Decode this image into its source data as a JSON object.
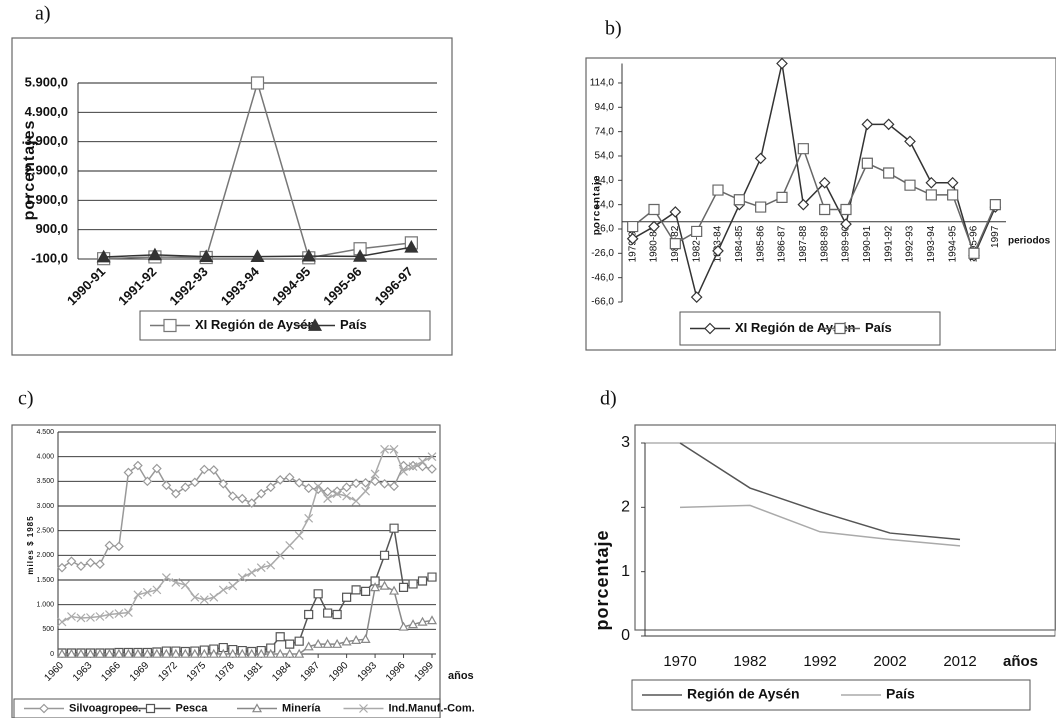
{
  "chart_data": [
    {
      "type": "line",
      "title": "a)",
      "y_label": "porcentajes",
      "categories": [
        "1990-91",
        "1991-92",
        "1992-93",
        "1993-94",
        "1994-95",
        "1995-96",
        "1996-97"
      ],
      "series": [
        {
          "name": "XI Región de Aysén",
          "color": "#777777",
          "marker": "square",
          "values": [
            -90,
            -30,
            -50,
            5900,
            -60,
            250,
            450
          ]
        },
        {
          "name": "País",
          "color": "#333333",
          "marker": "triangle",
          "values": [
            -30,
            40,
            -20,
            -20,
            0,
            -10,
            300
          ]
        }
      ],
      "ylim": [
        -100,
        5900
      ],
      "yticks": [
        {
          "value": -100,
          "label": "-100,0"
        },
        {
          "value": 900,
          "label": "900,0"
        },
        {
          "value": 1900,
          "label": "1.900,0"
        },
        {
          "value": 2900,
          "label": "2.900,0"
        },
        {
          "value": 3900,
          "label": "3.900,0"
        },
        {
          "value": 4900,
          "label": "4.900,0"
        },
        {
          "value": 5900,
          "label": "5.900,0"
        }
      ],
      "grid": true,
      "legend": "bottom"
    },
    {
      "type": "line",
      "title": "b)",
      "y_label": "porcentaje",
      "x_label": "periodos",
      "categories": [
        "1979-80",
        "1980-81",
        "1981-82",
        "1982-83",
        "1983-84",
        "1984-85",
        "1985-86",
        "1986-87",
        "1987-88",
        "1988-89",
        "1989-90",
        "1990-91",
        "1991-92",
        "1992-93",
        "1993-94",
        "1994-95",
        "1995-96",
        "1997"
      ],
      "series": [
        {
          "name": "XI Región de Aysén",
          "color": "#333333",
          "marker": "diamond",
          "values": [
            -14,
            -4,
            8,
            -62,
            -24,
            14,
            52,
            130,
            14,
            32,
            -2,
            80,
            80,
            66,
            32,
            32,
            -28,
            12
          ]
        },
        {
          "name": "País",
          "color": "#666666",
          "marker": "square",
          "values": [
            -4,
            10,
            -18,
            -8,
            26,
            18,
            12,
            20,
            60,
            10,
            10,
            48,
            40,
            30,
            22,
            22,
            -26,
            14
          ]
        }
      ],
      "ylim": [
        -66,
        130
      ],
      "yticks": [
        {
          "value": -66,
          "label": "-66,0"
        },
        {
          "value": -46,
          "label": "-46,0"
        },
        {
          "value": -26,
          "label": "-26,0"
        },
        {
          "value": -6,
          "label": "-6,0"
        },
        {
          "value": 14,
          "label": "14,0"
        },
        {
          "value": 34,
          "label": "34,0"
        },
        {
          "value": 54,
          "label": "54,0"
        },
        {
          "value": 74,
          "label": "74,0"
        },
        {
          "value": 94,
          "label": "94,0"
        },
        {
          "value": 114,
          "label": "114,0"
        }
      ],
      "grid": false,
      "legend": "bottom"
    },
    {
      "type": "line",
      "title": "c)",
      "y_label": "miles $ 1985",
      "x_label": "años",
      "x": [
        1960,
        1961,
        1962,
        1963,
        1964,
        1965,
        1966,
        1967,
        1968,
        1969,
        1970,
        1971,
        1972,
        1973,
        1974,
        1975,
        1976,
        1977,
        1978,
        1979,
        1980,
        1981,
        1982,
        1983,
        1984,
        1985,
        1986,
        1987,
        1988,
        1989,
        1990,
        1991,
        1992,
        1993,
        1994,
        1995,
        1996,
        1997,
        1998,
        1999
      ],
      "series": [
        {
          "name": "Silvoagropec.",
          "color": "#999999",
          "marker": "diamond",
          "values": [
            1750,
            1880,
            1780,
            1850,
            1820,
            2200,
            2180,
            3680,
            3820,
            3500,
            3760,
            3420,
            3250,
            3380,
            3480,
            3740,
            3730,
            3450,
            3200,
            3150,
            3060,
            3250,
            3380,
            3530,
            3580,
            3470,
            3360,
            3340,
            3290,
            3300,
            3380,
            3460,
            3470,
            3500,
            3450,
            3400,
            3820,
            3820,
            3800,
            3750
          ]
        },
        {
          "name": "Pesca",
          "color": "#555555",
          "marker": "square",
          "values": [
            20,
            20,
            20,
            20,
            20,
            20,
            30,
            30,
            30,
            30,
            40,
            60,
            60,
            50,
            60,
            80,
            100,
            130,
            90,
            70,
            50,
            70,
            120,
            350,
            200,
            260,
            800,
            1220,
            830,
            800,
            1150,
            1300,
            1270,
            1480,
            2000,
            2550,
            1350,
            1420,
            1480,
            1560
          ]
        },
        {
          "name": "Minería",
          "color": "#888888",
          "marker": "triangle",
          "values": [
            0,
            0,
            0,
            0,
            0,
            0,
            0,
            0,
            0,
            0,
            0,
            0,
            0,
            0,
            0,
            0,
            0,
            0,
            0,
            0,
            0,
            0,
            0,
            0,
            0,
            0,
            150,
            200,
            200,
            200,
            250,
            280,
            300,
            1350,
            1380,
            1280,
            550,
            600,
            650,
            680
          ]
        },
        {
          "name": "Ind.Manuf.-Com.",
          "color": "#aaaaaa",
          "marker": "x",
          "values": [
            650,
            760,
            730,
            740,
            760,
            800,
            820,
            840,
            1200,
            1250,
            1300,
            1550,
            1450,
            1400,
            1150,
            1100,
            1150,
            1300,
            1380,
            1550,
            1650,
            1750,
            1800,
            2000,
            2200,
            2400,
            2750,
            3400,
            3150,
            3250,
            3200,
            3100,
            3300,
            3650,
            4150,
            4150,
            3700,
            3800,
            3900,
            4000
          ]
        }
      ],
      "xlim": [
        1960,
        1999
      ],
      "xticks": [
        1960,
        1963,
        1966,
        1969,
        1972,
        1975,
        1978,
        1981,
        1984,
        1987,
        1990,
        1993,
        1996,
        1999
      ],
      "ylim": [
        0,
        4500
      ],
      "yticks": [
        0,
        500,
        {
          "value": 1000,
          "label": "1.000"
        },
        {
          "value": 1500,
          "label": "1.500"
        },
        {
          "value": 2000,
          "label": "2.000"
        },
        {
          "value": 2500,
          "label": "2.500"
        },
        {
          "value": 3000,
          "label": "3.000"
        },
        {
          "value": 3500,
          "label": "3.500"
        },
        {
          "value": 4000,
          "label": "4.000"
        },
        {
          "value": 4500,
          "label": "4.500"
        }
      ],
      "grid": true,
      "legend": "bottom"
    },
    {
      "type": "line",
      "title": "d)",
      "y_label": "porcentaje",
      "x_label": "años",
      "categories": [
        "1970",
        "1982",
        "1992",
        "2002",
        "2012"
      ],
      "series": [
        {
          "name": "Región de Aysén",
          "color": "#555555",
          "marker": "none",
          "values": [
            3.0,
            2.3,
            1.93,
            1.6,
            1.5
          ]
        },
        {
          "name": "País",
          "color": "#aaaaaa",
          "marker": "none",
          "values": [
            2.0,
            2.03,
            1.62,
            1.5,
            1.4
          ]
        }
      ],
      "ylim": [
        0,
        3
      ],
      "yticks": [
        0,
        1,
        2,
        3
      ],
      "grid": false,
      "legend": "bottom"
    }
  ]
}
